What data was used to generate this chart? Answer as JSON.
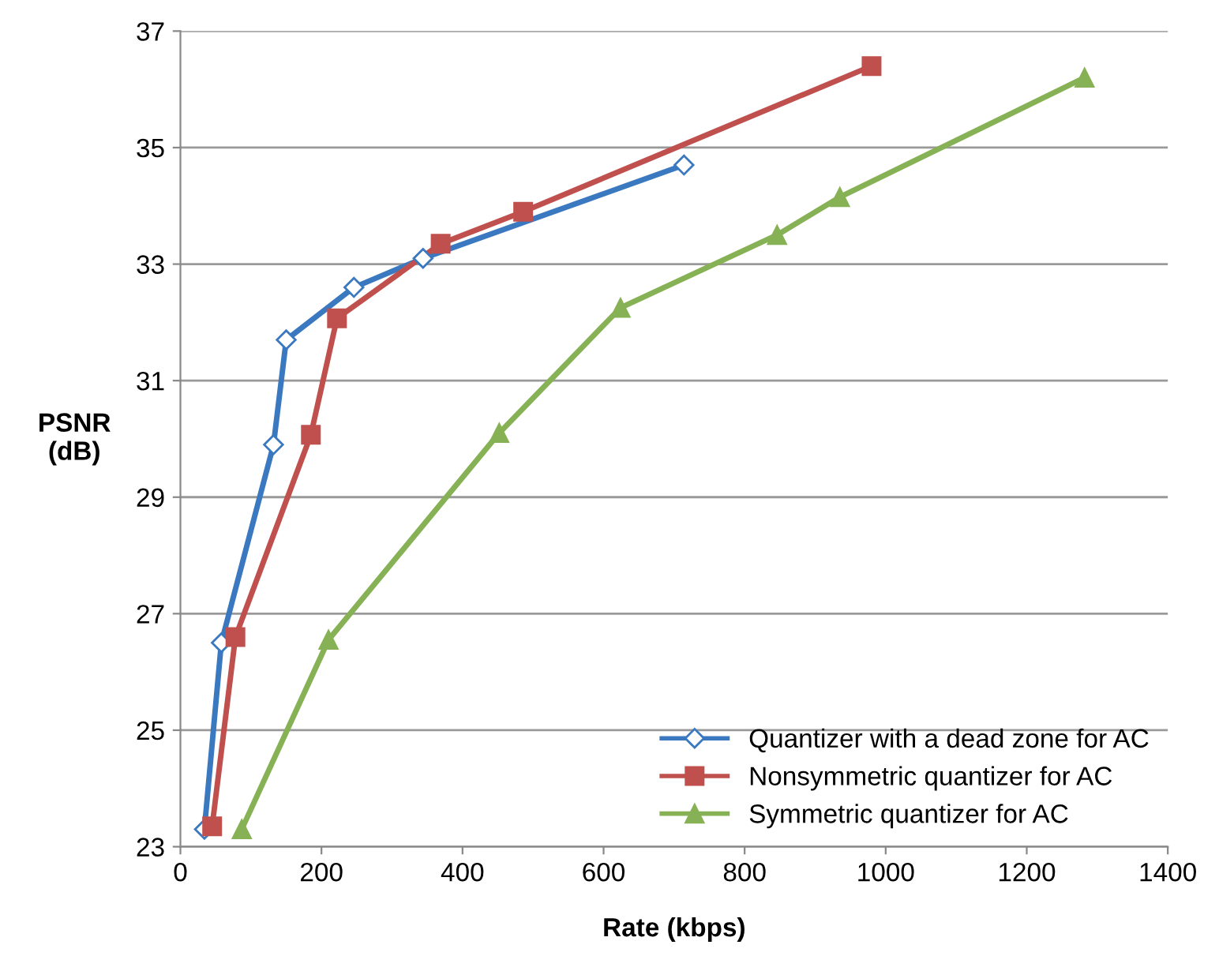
{
  "chart_data": {
    "type": "line",
    "xlabel": "Rate (kbps)",
    "ylabel": "PSNR\n(dB)",
    "xlim": [
      0,
      1400
    ],
    "xticks": [
      0,
      200,
      400,
      600,
      800,
      1000,
      1200,
      1400
    ],
    "ylim": [
      23,
      37
    ],
    "yticks": [
      23,
      25,
      27,
      29,
      31,
      33,
      35,
      37
    ],
    "grid": "y",
    "legend": "bottom right",
    "line_style": "solid",
    "series": [
      {
        "name": "Quantizer with a dead zone for AC",
        "color": "#3a78c0",
        "marker": "diamond",
        "x": [
          34,
          58,
          132,
          150,
          246,
          344,
          714
        ],
        "values": [
          23.3,
          26.5,
          29.9,
          31.7,
          32.6,
          33.1,
          34.7
        ]
      },
      {
        "name": "Nonsymmetric quantizer for AC",
        "color": "#c0504d",
        "marker": "square",
        "x": [
          45,
          78,
          185,
          222,
          369,
          486,
          980
        ],
        "values": [
          23.35,
          26.6,
          30.07,
          32.07,
          33.35,
          33.9,
          36.4
        ]
      },
      {
        "name": "Symmetric quantizer for AC",
        "color": "#86b155",
        "marker": "triangle",
        "x": [
          87,
          210,
          452,
          624,
          846,
          935,
          1282
        ],
        "values": [
          23.3,
          26.55,
          30.1,
          32.25,
          33.5,
          34.15,
          36.2
        ]
      }
    ]
  }
}
